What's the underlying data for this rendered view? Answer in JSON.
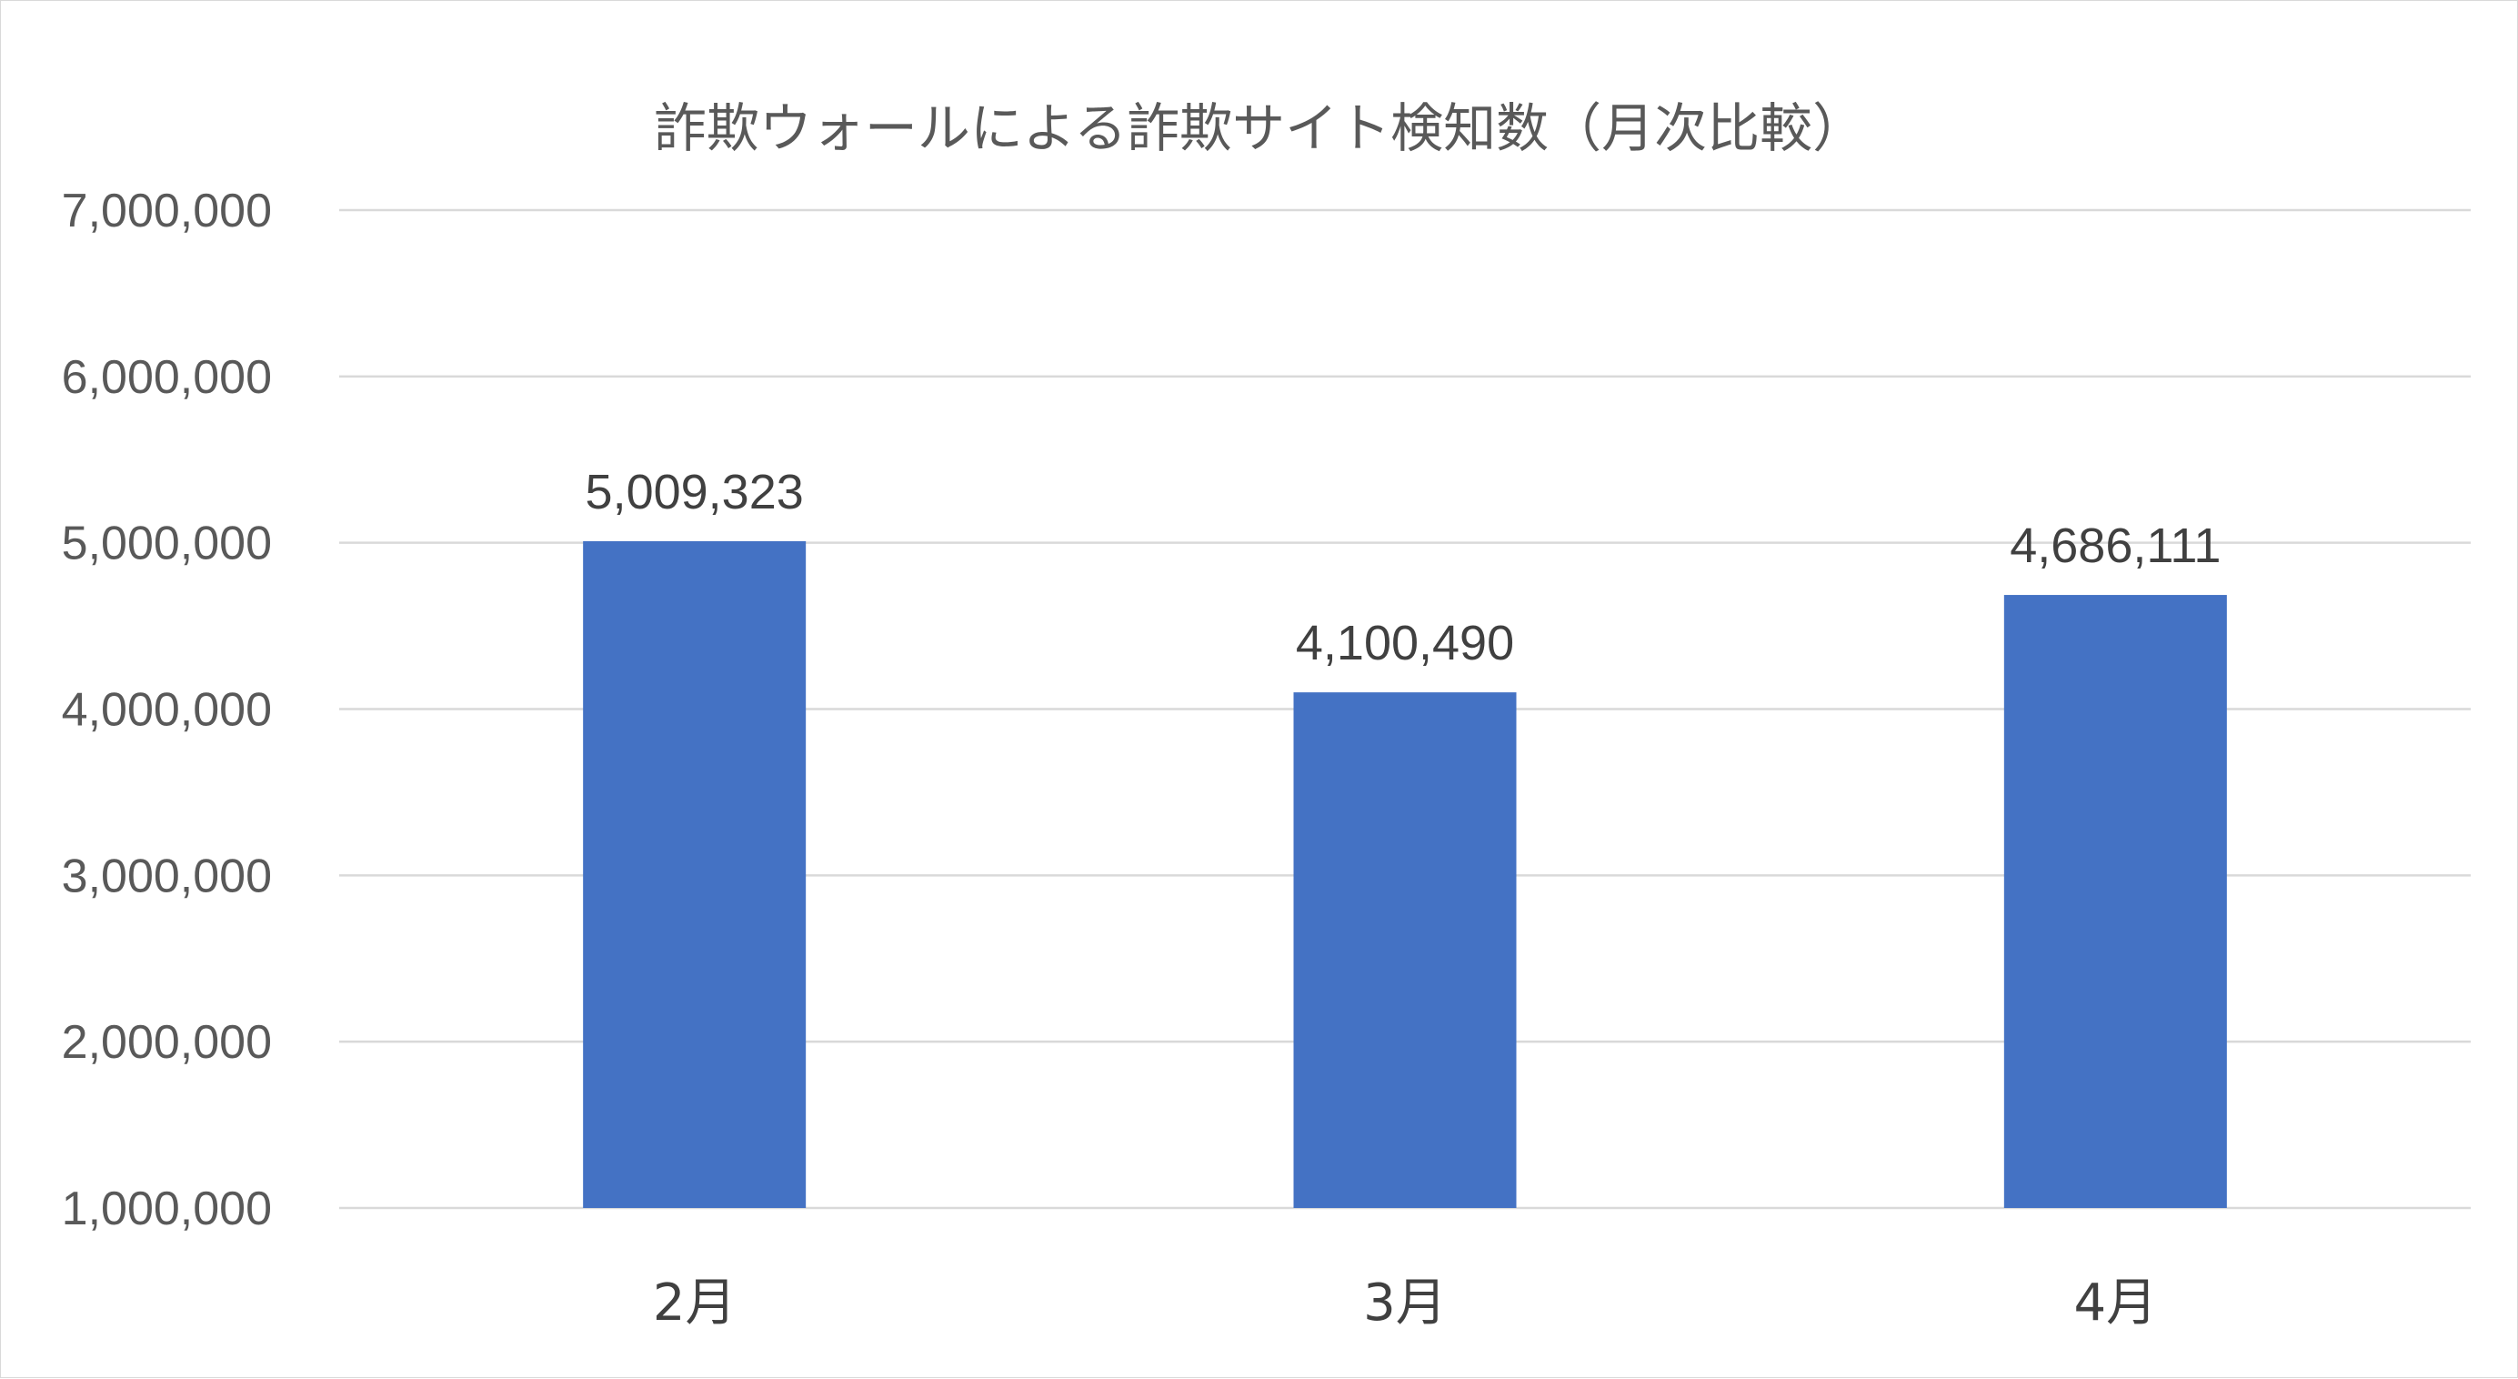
{
  "chart_data": {
    "type": "bar",
    "title": "詐欺ウォールによる詐欺サイト検知数（月次比較）",
    "xlabel": "",
    "ylabel": "",
    "categories": [
      "2月",
      "3月",
      "4月"
    ],
    "values": [
      5009323,
      4100490,
      4686111
    ],
    "data_labels": [
      "5,009,323",
      "4,100,490",
      "4,686,111"
    ],
    "ylim": [
      1000000,
      7000000
    ],
    "y_ticks": [
      1000000,
      2000000,
      3000000,
      4000000,
      5000000,
      6000000,
      7000000
    ],
    "y_tick_labels": [
      "1,000,000",
      "2,000,000",
      "3,000,000",
      "4,000,000",
      "5,000,000",
      "6,000,000",
      "7,000,000"
    ],
    "grid": true,
    "legend": "none",
    "bar_color": "#4472C4"
  }
}
